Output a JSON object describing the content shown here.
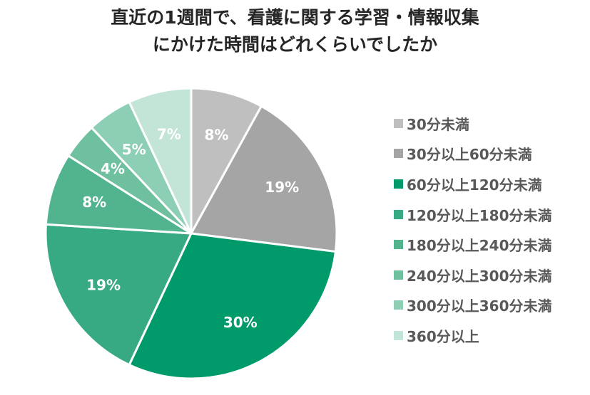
{
  "chart_data": {
    "type": "pie",
    "title": [
      "直近の1週間で、看護に関する学習・情報収集",
      "にかけた時間はどれくらいでしたか"
    ],
    "legend_position": "right",
    "slices": [
      {
        "label": "30分未満",
        "value": 8,
        "value_label": "8%",
        "color": "#bfbfbf"
      },
      {
        "label": "30分以上60分未満",
        "value": 19,
        "value_label": "19%",
        "color": "#a5a5a5"
      },
      {
        "label": "60分以上120分未満",
        "value": 30,
        "value_label": "30%",
        "color": "#009a6b"
      },
      {
        "label": "120分以上180分未満",
        "value": 19,
        "value_label": "19%",
        "color": "#37aa83"
      },
      {
        "label": "180分以上240分未満",
        "value": 8,
        "value_label": "8%",
        "color": "#52b48f"
      },
      {
        "label": "240分以上300分未満",
        "value": 4,
        "value_label": "4%",
        "color": "#6ec09f"
      },
      {
        "label": "300分以上360分未満",
        "value": 5,
        "value_label": "5%",
        "color": "#8dcfb5"
      },
      {
        "label": "360分以上",
        "value": 7,
        "value_label": "7%",
        "color": "#c3e5d8"
      }
    ]
  }
}
